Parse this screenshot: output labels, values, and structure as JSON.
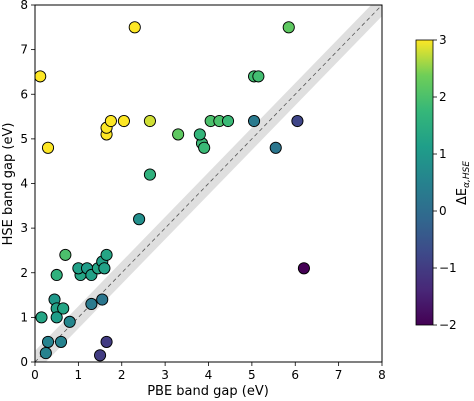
{
  "chart_data": {
    "type": "scatter",
    "xlabel": "PBE band gap (eV)",
    "ylabel": "HSE band gap (eV)",
    "xlim": [
      0,
      8
    ],
    "ylim": [
      0,
      8
    ],
    "xticks": [
      "0",
      "1",
      "2",
      "3",
      "4",
      "5",
      "6",
      "7",
      "8"
    ],
    "yticks": [
      "0",
      "1",
      "2",
      "3",
      "4",
      "5",
      "6",
      "7",
      "8"
    ],
    "grid": false,
    "reference_line": "y = x (dashed) with shaded band",
    "colorbar": {
      "label": "ΔE",
      "label_sub": "α,HSE",
      "min": -2,
      "max": 3,
      "colormap": "viridis",
      "ticks": [
        "3",
        "2",
        "1",
        "0",
        "−1",
        "−2"
      ]
    },
    "points": [
      {
        "x": 0.12,
        "y": 6.4,
        "c": 3.0
      },
      {
        "x": 0.3,
        "y": 4.8,
        "c": 3.0
      },
      {
        "x": 2.3,
        "y": 7.5,
        "c": 3.0
      },
      {
        "x": 1.65,
        "y": 5.1,
        "c": 3.0
      },
      {
        "x": 1.65,
        "y": 5.25,
        "c": 3.0
      },
      {
        "x": 1.75,
        "y": 5.4,
        "c": 3.0
      },
      {
        "x": 2.05,
        "y": 5.4,
        "c": 3.0
      },
      {
        "x": 2.65,
        "y": 5.4,
        "c": 2.8
      },
      {
        "x": 3.3,
        "y": 5.1,
        "c": 2.2
      },
      {
        "x": 3.85,
        "y": 4.9,
        "c": 1.8
      },
      {
        "x": 3.9,
        "y": 4.8,
        "c": 1.8
      },
      {
        "x": 4.05,
        "y": 5.4,
        "c": 2.0
      },
      {
        "x": 4.25,
        "y": 5.4,
        "c": 2.0
      },
      {
        "x": 4.45,
        "y": 5.4,
        "c": 1.8
      },
      {
        "x": 3.8,
        "y": 5.1,
        "c": 1.7
      },
      {
        "x": 5.05,
        "y": 6.4,
        "c": 1.9
      },
      {
        "x": 5.15,
        "y": 6.4,
        "c": 1.9
      },
      {
        "x": 5.85,
        "y": 7.5,
        "c": 2.2
      },
      {
        "x": 5.05,
        "y": 5.4,
        "c": 0.3
      },
      {
        "x": 5.55,
        "y": 4.8,
        "c": 0.2
      },
      {
        "x": 6.05,
        "y": 5.4,
        "c": -0.8
      },
      {
        "x": 6.2,
        "y": 2.1,
        "c": -2.0
      },
      {
        "x": 2.65,
        "y": 4.2,
        "c": 1.6
      },
      {
        "x": 2.4,
        "y": 3.2,
        "c": 0.8
      },
      {
        "x": 0.7,
        "y": 2.4,
        "c": 2.0
      },
      {
        "x": 0.5,
        "y": 1.95,
        "c": 1.6
      },
      {
        "x": 0.45,
        "y": 1.4,
        "c": 1.0
      },
      {
        "x": 0.5,
        "y": 1.2,
        "c": 1.2
      },
      {
        "x": 0.65,
        "y": 1.2,
        "c": 1.3
      },
      {
        "x": 0.15,
        "y": 1.0,
        "c": 1.3
      },
      {
        "x": 0.5,
        "y": 1.0,
        "c": 1.1
      },
      {
        "x": 0.8,
        "y": 0.9,
        "c": 0.6
      },
      {
        "x": 0.6,
        "y": 0.45,
        "c": 0.5
      },
      {
        "x": 0.3,
        "y": 0.45,
        "c": 0.5
      },
      {
        "x": 0.25,
        "y": 0.2,
        "c": 0.5
      },
      {
        "x": 1.05,
        "y": 1.95,
        "c": 1.3
      },
      {
        "x": 1.0,
        "y": 2.1,
        "c": 1.2
      },
      {
        "x": 1.2,
        "y": 2.1,
        "c": 1.1
      },
      {
        "x": 1.3,
        "y": 1.95,
        "c": 1.2
      },
      {
        "x": 1.45,
        "y": 2.1,
        "c": 1.3
      },
      {
        "x": 1.55,
        "y": 2.25,
        "c": 1.2
      },
      {
        "x": 1.65,
        "y": 2.4,
        "c": 1.3
      },
      {
        "x": 1.6,
        "y": 2.1,
        "c": 1.2
      },
      {
        "x": 1.3,
        "y": 1.3,
        "c": 0.3
      },
      {
        "x": 1.55,
        "y": 1.4,
        "c": 0.2
      },
      {
        "x": 1.65,
        "y": 0.45,
        "c": -1.0
      },
      {
        "x": 1.5,
        "y": 0.15,
        "c": -1.0
      }
    ]
  }
}
